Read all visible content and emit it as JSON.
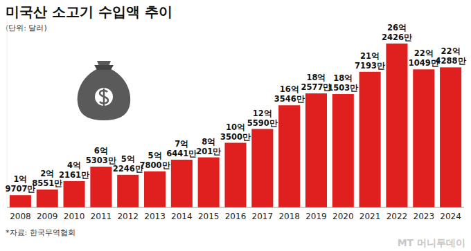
{
  "chart_data": {
    "type": "bar",
    "title": "미국산 소고기 수입액 추이",
    "subtitle": "(단위: 달러)",
    "source": "*자료: 한국무역협회",
    "credit": "MT 머니투데이",
    "categories": [
      "2008",
      "2009",
      "2010",
      "2011",
      "2012",
      "2013",
      "2014",
      "2015",
      "2016",
      "2017",
      "2018",
      "2019",
      "2020",
      "2021",
      "2022",
      "2023",
      "2024"
    ],
    "values": [
      197070000,
      285510000,
      421610000,
      653030000,
      522460000,
      578000000,
      764410000,
      802010000,
      1035000000,
      1255900000,
      1635460000,
      1825770000,
      1815030000,
      2171930000,
      2624260000,
      2210490000,
      2242880000
    ],
    "value_labels": [
      "1억 9707만",
      "2억 8551만",
      "4억 2161만",
      "6억 5303만",
      "5억 2246만",
      "5억 7800만",
      "7억 6441만",
      "8억 201만",
      "10억 3500만",
      "12억 5590만",
      "16억 3546만",
      "18억 2577만",
      "18억 1503만",
      "21억 7193만",
      "26억 2426만",
      "22억 1049만",
      "22억 4288만"
    ],
    "color": "#e0201e",
    "ylim": [
      0,
      3000000000
    ],
    "data_labels": true,
    "tick_labels": "x",
    "grid": false
  }
}
